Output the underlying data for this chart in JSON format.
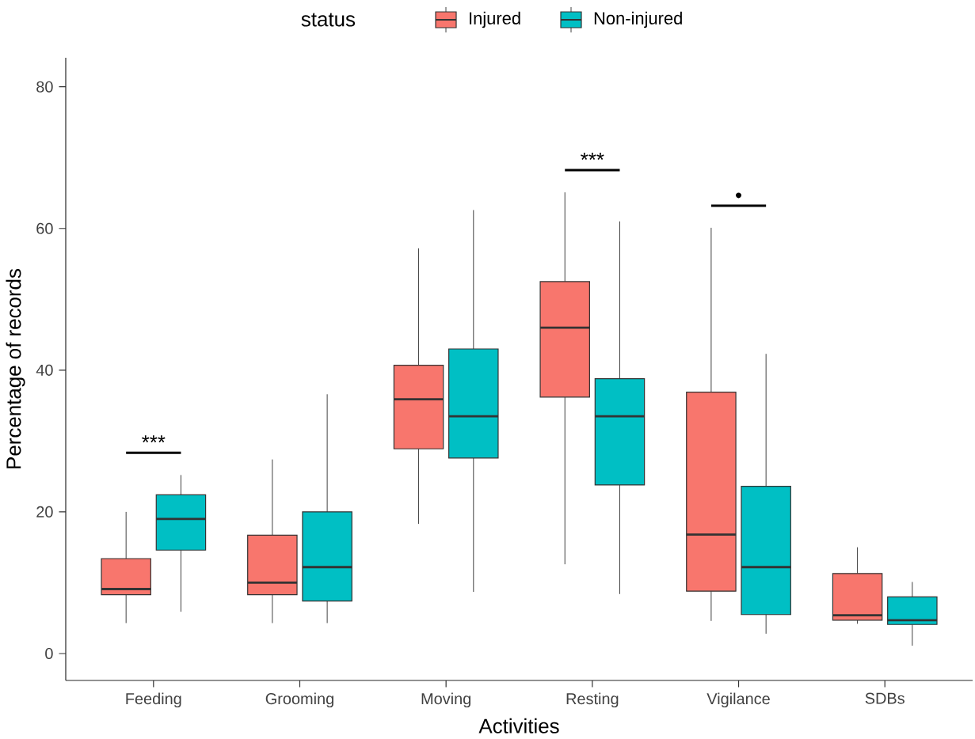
{
  "chart_data": {
    "type": "box",
    "xlabel": "Activities",
    "ylabel": "Percentage of records",
    "legend_title": "status",
    "legend": "top",
    "categories": [
      "Feeding",
      "Grooming",
      "Moving",
      "Resting",
      "Vigilance",
      "SDBs"
    ],
    "ylim": [
      -3.8,
      84.1
    ],
    "yticks": [
      0,
      20,
      40,
      60,
      80
    ],
    "series": [
      {
        "name": "Injured",
        "color": "#f8766d",
        "boxes": [
          {
            "low": 4.3,
            "q1": 8.3,
            "median": 9.1,
            "q3": 13.4,
            "high": 20.0
          },
          {
            "low": 4.3,
            "q1": 8.3,
            "median": 10.0,
            "q3": 16.7,
            "high": 27.4
          },
          {
            "low": 18.3,
            "q1": 28.9,
            "median": 35.9,
            "q3": 40.7,
            "high": 57.2
          },
          {
            "low": 12.6,
            "q1": 36.2,
            "median": 46.0,
            "q3": 52.5,
            "high": 65.1
          },
          {
            "low": 4.6,
            "q1": 8.8,
            "median": 16.8,
            "q3": 36.9,
            "high": 60.1
          },
          {
            "low": 4.2,
            "q1": 4.7,
            "median": 5.4,
            "q3": 11.3,
            "high": 15.0
          }
        ]
      },
      {
        "name": "Non-injured",
        "color": "#00bfc4",
        "boxes": [
          {
            "low": 5.9,
            "q1": 14.6,
            "median": 19.0,
            "q3": 22.4,
            "high": 25.2
          },
          {
            "low": 4.3,
            "q1": 7.4,
            "median": 12.2,
            "q3": 20.0,
            "high": 36.6
          },
          {
            "low": 8.7,
            "q1": 27.6,
            "median": 33.5,
            "q3": 43.0,
            "high": 62.6
          },
          {
            "low": 8.4,
            "q1": 23.8,
            "median": 33.5,
            "q3": 38.8,
            "high": 61.0
          },
          {
            "low": 2.8,
            "q1": 5.5,
            "median": 12.2,
            "q3": 23.6,
            "high": 42.3
          },
          {
            "low": 1.1,
            "q1": 4.1,
            "median": 4.7,
            "q3": 8.0,
            "high": 10.1
          }
        ]
      }
    ],
    "annotations": [
      "***",
      "***",
      "•"
    ]
  }
}
